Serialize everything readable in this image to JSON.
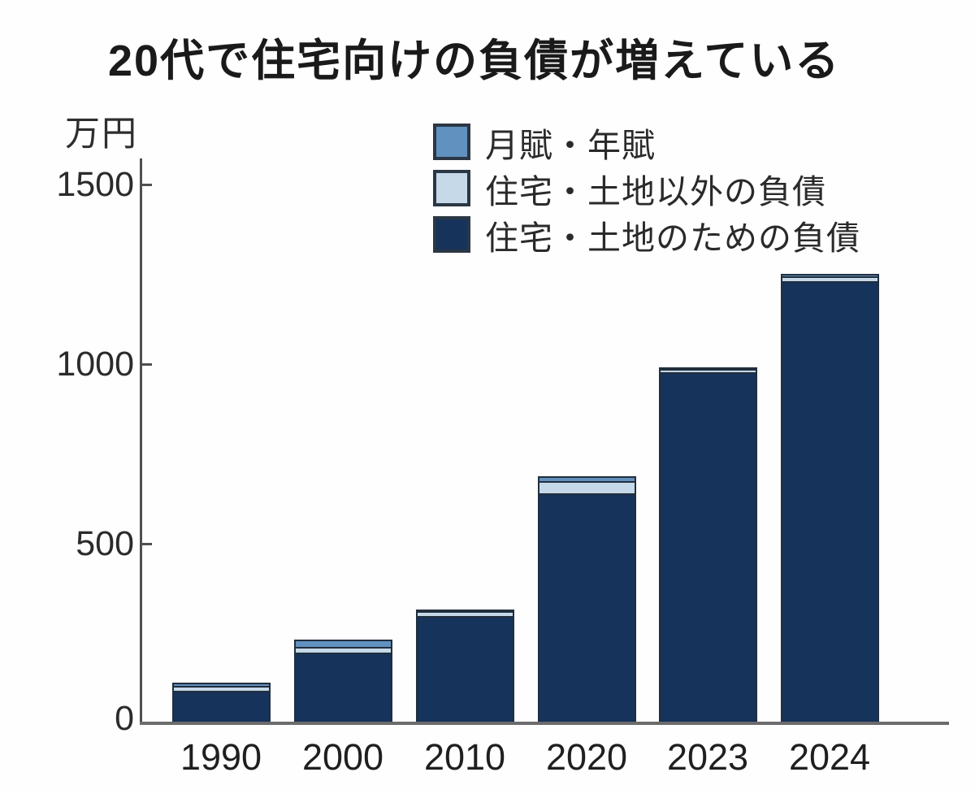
{
  "title": "20代で住宅向けの負債が増えている",
  "y_axis_unit_label": "万円",
  "legend": {
    "items": [
      {
        "label": "月賦・年賦",
        "color": "#6191bf"
      },
      {
        "label": "住宅・土地以外の負債",
        "color": "#c5d9e9"
      },
      {
        "label": "住宅・土地のための負債",
        "color": "#16335b"
      }
    ]
  },
  "chart_data": {
    "type": "bar",
    "stacked": true,
    "title": "20代で住宅向けの負債が増えている",
    "ylabel": "万円",
    "xlabel": "",
    "categories": [
      "1990",
      "2000",
      "2010",
      "2020",
      "2023",
      "2024"
    ],
    "series": [
      {
        "name": "住宅・土地のための負債",
        "color": "#16335b",
        "values": [
          80,
          185,
          288,
          630,
          965,
          1220
        ]
      },
      {
        "name": "住宅・土地以外の負債",
        "color": "#c5d9e9",
        "values": [
          18,
          23,
          20,
          38,
          15,
          18
        ]
      },
      {
        "name": "月賦・年賦",
        "color": "#6191bf",
        "values": [
          15,
          25,
          9,
          20,
          10,
          13
        ]
      }
    ],
    "stack_order": "bottom-to-top",
    "totals": [
      113,
      233,
      317,
      688,
      990,
      1251
    ],
    "ylim": [
      0,
      1500
    ],
    "yticks": [
      0,
      500,
      1000,
      1500
    ],
    "grid": false,
    "legend_position": "top-center-inside"
  },
  "colors": {
    "background": "#fefefe",
    "bar_border": "#222e3d",
    "axis": "#4f4f4f",
    "text": "#1f1f1f"
  }
}
